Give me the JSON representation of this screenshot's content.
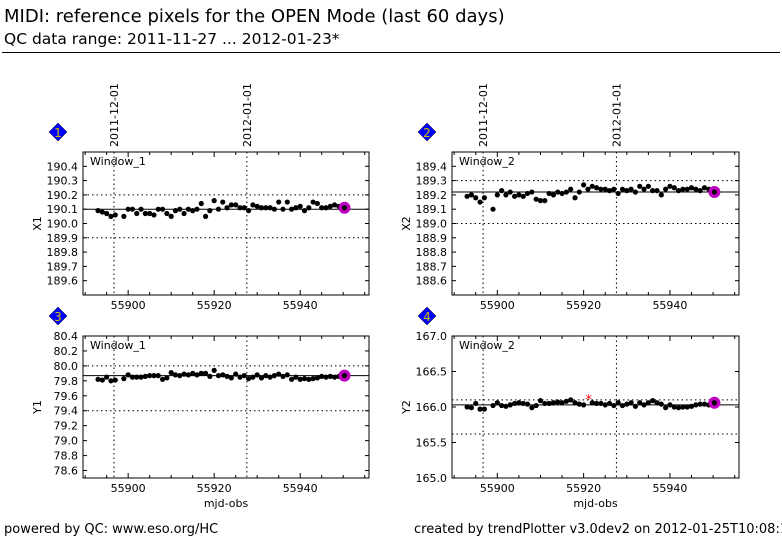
{
  "header": {
    "title": "MIDI: reference pixels for the OPEN Mode (last 60 days)",
    "subtitle": "QC data range: 2011-11-27 ... 2012-01-23*"
  },
  "footer": {
    "left": "powered by QC: www.eso.org/HC",
    "right": "created by trendPlotter v3.0dev2 on 2012-01-25T10:08:13"
  },
  "colors": {
    "points": "#000000",
    "latest": "#c000c0",
    "outlier": "#ff0000",
    "badge": "#0000ff",
    "badge_text": "#d4c000"
  },
  "chart_data": [
    {
      "type": "scatter",
      "badge": "1",
      "window": "Window_1",
      "ylabel": "X1",
      "xlabel": "",
      "xlim": [
        55889.5,
        55956
      ],
      "ylim": [
        189.5,
        190.5
      ],
      "xticks": [
        55900,
        55920,
        55940
      ],
      "yticks": [
        "189.6",
        "189.7",
        "189.8",
        "189.9",
        "190.0",
        "190.1",
        "190.2",
        "190.3",
        "190.4"
      ],
      "date_markers": [
        {
          "x": 55896.7,
          "label": "2011-12-01"
        },
        {
          "x": 55927.6,
          "label": "2012-01-01"
        }
      ],
      "reference": 190.1,
      "limits": [
        189.9,
        190.2
      ],
      "x": [
        55893,
        55894,
        55895,
        55896,
        55897,
        55899,
        55900,
        55901,
        55902,
        55903,
        55904,
        55905,
        55906,
        55907,
        55908,
        55909,
        55910,
        55911,
        55912,
        55913,
        55914,
        55915,
        55916,
        55917,
        55918,
        55919,
        55920,
        55921,
        55922,
        55923,
        55924,
        55925,
        55926,
        55927,
        55928,
        55929,
        55930,
        55931,
        55932,
        55933,
        55934,
        55935,
        55936,
        55937,
        55938,
        55939,
        55940,
        55941,
        55942,
        55943,
        55944,
        55945,
        55946,
        55947,
        55948,
        55949,
        55950.3
      ],
      "y": [
        190.09,
        190.08,
        190.07,
        190.05,
        190.06,
        190.05,
        190.1,
        190.1,
        190.07,
        190.1,
        190.07,
        190.07,
        190.06,
        190.1,
        190.1,
        190.07,
        190.05,
        190.09,
        190.1,
        190.07,
        190.1,
        190.09,
        190.1,
        190.14,
        190.05,
        190.09,
        190.16,
        190.1,
        190.15,
        190.11,
        190.13,
        190.13,
        190.11,
        190.11,
        190.09,
        190.13,
        190.12,
        190.11,
        190.11,
        190.11,
        190.1,
        190.15,
        190.1,
        190.15,
        190.1,
        190.11,
        190.12,
        190.09,
        190.11,
        190.15,
        190.14,
        190.11,
        190.11,
        190.12,
        190.13,
        190.12,
        190.11
      ],
      "outliers": []
    },
    {
      "type": "scatter",
      "badge": "2",
      "window": "Window_2",
      "ylabel": "X2",
      "xlabel": "",
      "xlim": [
        55889.5,
        55956
      ],
      "ylim": [
        188.5,
        189.5
      ],
      "xticks": [
        55900,
        55920,
        55940
      ],
      "yticks": [
        "188.6",
        "188.7",
        "188.8",
        "188.9",
        "189.0",
        "189.1",
        "189.2",
        "189.3",
        "189.4"
      ],
      "date_markers": [
        {
          "x": 55896.7,
          "label": "2011-12-01"
        },
        {
          "x": 55927.6,
          "label": "2012-01-01"
        }
      ],
      "reference": 189.22,
      "limits": [
        189.0,
        189.3
      ],
      "x": [
        55893,
        55894,
        55895,
        55896,
        55897,
        55899,
        55900,
        55901,
        55902,
        55903,
        55904,
        55905,
        55906,
        55907,
        55908,
        55909,
        55910,
        55911,
        55912,
        55913,
        55914,
        55915,
        55916,
        55917,
        55918,
        55919,
        55920,
        55921,
        55922,
        55923,
        55924,
        55925,
        55926,
        55927,
        55928,
        55929,
        55930,
        55931,
        55932,
        55933,
        55934,
        55935,
        55936,
        55937,
        55938,
        55939,
        55940,
        55941,
        55942,
        55943,
        55944,
        55945,
        55946,
        55947,
        55948,
        55949,
        55950.3
      ],
      "y": [
        189.19,
        189.2,
        189.18,
        189.15,
        189.18,
        189.1,
        189.2,
        189.23,
        189.2,
        189.22,
        189.19,
        189.2,
        189.19,
        189.21,
        189.22,
        189.17,
        189.16,
        189.16,
        189.21,
        189.2,
        189.22,
        189.21,
        189.22,
        189.24,
        189.18,
        189.22,
        189.27,
        189.24,
        189.26,
        189.25,
        189.24,
        189.24,
        189.23,
        189.24,
        189.21,
        189.24,
        189.23,
        189.24,
        189.22,
        189.26,
        189.24,
        189.26,
        189.23,
        189.23,
        189.2,
        189.24,
        189.26,
        189.25,
        189.23,
        189.24,
        189.24,
        189.25,
        189.24,
        189.23,
        189.25,
        189.24,
        189.22
      ],
      "outliers": []
    },
    {
      "type": "scatter",
      "badge": "3",
      "window": "Window_1",
      "ylabel": "Y1",
      "xlabel": "mjd-obs",
      "xlim": [
        55889.5,
        55956
      ],
      "ylim": [
        78.5,
        80.4
      ],
      "xticks": [
        55900,
        55920,
        55940
      ],
      "yticks": [
        "78.6",
        "78.8",
        "79.0",
        "79.2",
        "79.4",
        "79.6",
        "79.8",
        "80.0",
        "80.2",
        "80.4"
      ],
      "date_markers": [
        {
          "x": 55896.7,
          "label": ""
        },
        {
          "x": 55927.6,
          "label": ""
        }
      ],
      "reference": 79.87,
      "limits": [
        79.4,
        80.0
      ],
      "x": [
        55893,
        55894,
        55895,
        55896,
        55897,
        55899,
        55900,
        55901,
        55902,
        55903,
        55904,
        55905,
        55906,
        55907,
        55908,
        55909,
        55910,
        55911,
        55912,
        55913,
        55914,
        55915,
        55916,
        55917,
        55918,
        55919,
        55920,
        55921,
        55922,
        55923,
        55924,
        55925,
        55926,
        55927,
        55928,
        55929,
        55930,
        55931,
        55932,
        55933,
        55934,
        55935,
        55936,
        55937,
        55938,
        55939,
        55940,
        55941,
        55942,
        55943,
        55944,
        55945,
        55946,
        55947,
        55948,
        55949,
        55950.3
      ],
      "y": [
        79.82,
        79.81,
        79.85,
        79.8,
        79.81,
        79.83,
        79.88,
        79.85,
        79.85,
        79.85,
        79.86,
        79.87,
        79.87,
        79.87,
        79.82,
        79.84,
        79.91,
        79.88,
        79.87,
        79.89,
        79.88,
        79.9,
        79.88,
        79.9,
        79.9,
        79.86,
        79.94,
        79.87,
        79.88,
        79.86,
        79.84,
        79.89,
        79.85,
        79.87,
        79.83,
        79.85,
        79.88,
        79.84,
        79.87,
        79.85,
        79.87,
        79.89,
        79.86,
        79.88,
        79.82,
        79.85,
        79.82,
        79.83,
        79.82,
        79.83,
        79.84,
        79.86,
        79.85,
        79.86,
        79.85,
        79.86,
        79.87
      ],
      "outliers": []
    },
    {
      "type": "scatter",
      "badge": "4",
      "window": "Window_2",
      "ylabel": "Y2",
      "xlabel": "mjd-obs",
      "xlim": [
        55889.5,
        55956
      ],
      "ylim": [
        165.0,
        167.0
      ],
      "xticks": [
        55900,
        55920,
        55940
      ],
      "yticks": [
        "165.0",
        "165.5",
        "166.0",
        "166.5",
        "167.0"
      ],
      "date_markers": [
        {
          "x": 55896.7,
          "label": ""
        },
        {
          "x": 55927.6,
          "label": ""
        }
      ],
      "reference": 166.03,
      "limits": [
        165.62,
        166.1
      ],
      "x": [
        55893,
        55894,
        55895,
        55896,
        55897,
        55899,
        55900,
        55901,
        55902,
        55903,
        55904,
        55905,
        55906,
        55907,
        55908,
        55909,
        55910,
        55911,
        55912,
        55913,
        55914,
        55915,
        55916,
        55917,
        55918,
        55919,
        55920,
        55922,
        55923,
        55924,
        55925,
        55926,
        55927,
        55928,
        55929,
        55930,
        55931,
        55932,
        55933,
        55934,
        55935,
        55936,
        55937,
        55938,
        55939,
        55940,
        55941,
        55942,
        55943,
        55944,
        55945,
        55946,
        55947,
        55948,
        55949,
        55950.3
      ],
      "y": [
        166.0,
        165.99,
        166.05,
        165.97,
        165.97,
        166.02,
        166.06,
        166.02,
        166.01,
        166.03,
        166.05,
        166.06,
        166.05,
        166.04,
        165.99,
        166.02,
        166.09,
        166.05,
        166.05,
        166.06,
        166.07,
        166.06,
        166.08,
        166.1,
        166.06,
        166.04,
        166.03,
        166.06,
        166.05,
        166.05,
        166.03,
        166.05,
        166.02,
        166.06,
        166.02,
        166.04,
        166.06,
        166.01,
        166.06,
        166.03,
        166.06,
        166.09,
        166.06,
        166.04,
        165.99,
        166.03,
        166.0,
        165.99,
        166.0,
        166.0,
        166.01,
        166.03,
        166.04,
        166.04,
        166.03,
        166.06
      ],
      "outliers": [
        {
          "x": 55921.2,
          "y": 166.11
        }
      ]
    }
  ]
}
